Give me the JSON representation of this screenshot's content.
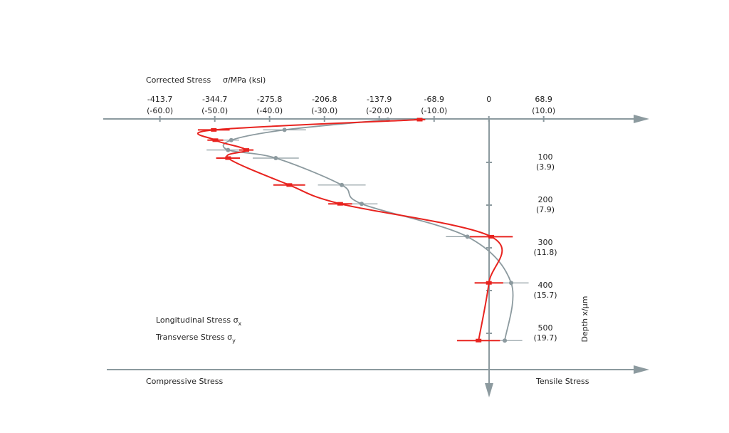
{
  "chart_data": {
    "type": "line",
    "x_label": "Corrected Stress",
    "x_unit": "σ/MPa (ksi)",
    "y_label": "Depth x/µm",
    "left_label": "Compressive Stress",
    "right_label": "Tensile Stress",
    "depths": [
      0,
      24,
      48,
      71,
      90,
      153,
      197,
      274,
      382,
      517
    ],
    "series": [
      {
        "name": "Longitudinal Stress σx",
        "color": "#8c9a9f",
        "values": [
          -127,
          -257,
          -324,
          -328,
          -268,
          -185,
          -160,
          -27,
          28,
          20
        ],
        "errors": [
          0,
          27,
          10,
          27,
          29,
          30,
          20,
          27,
          22,
          22
        ]
      },
      {
        "name": "Transverse Stress σy",
        "color": "#e8231f",
        "values": [
          -87,
          -346,
          -344,
          -305,
          -328,
          -251,
          -187,
          3,
          0,
          -13
        ],
        "errors": [
          7,
          20,
          10,
          9,
          15,
          20,
          15,
          27,
          18,
          27
        ]
      }
    ],
    "xlim": [
      -485,
      182
    ],
    "xticks": [
      -413.7,
      -344.7,
      -275.8,
      -206.8,
      -137.9,
      -68.9,
      0,
      68.9
    ],
    "xticks_secondary": [
      "(-60.0)",
      "(-50.0)",
      "(-40.0)",
      "(-30.0)",
      "(-20.0)",
      "(-10.0)",
      null,
      "(10.0)"
    ],
    "ylim": [
      0,
      640
    ],
    "yticks": [
      100,
      200,
      300,
      400,
      500
    ],
    "yticks_secondary": [
      "(3.9)",
      "(7.9)",
      "(11.8)",
      "(15.7)",
      "(19.7)"
    ]
  }
}
